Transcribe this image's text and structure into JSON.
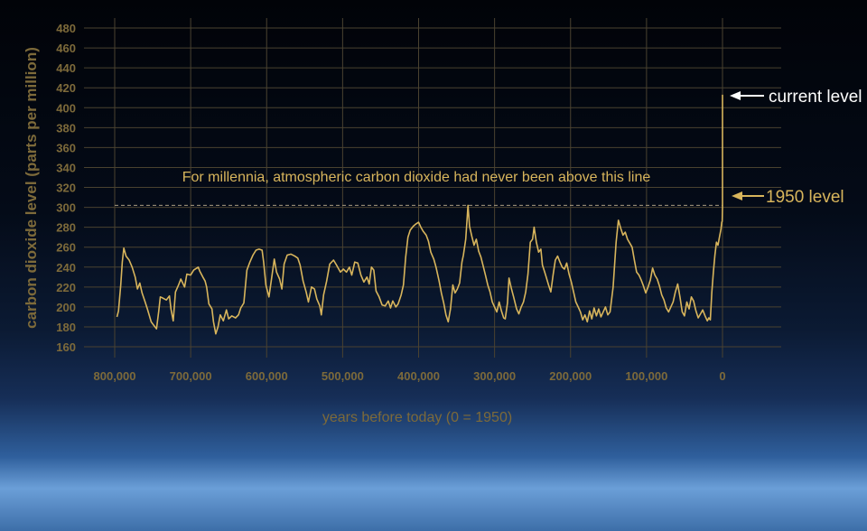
{
  "chart_data": {
    "type": "line",
    "title": "",
    "xlabel": "years before today (0 = 1950)",
    "ylabel": "carbon dioxide level (parts per million)",
    "xlim": [
      800000,
      0
    ],
    "ylim": [
      160,
      480
    ],
    "x_ticks": [
      800000,
      700000,
      600000,
      500000,
      400000,
      300000,
      200000,
      100000,
      0
    ],
    "x_tick_labels": [
      "800,000",
      "700,000",
      "600,000",
      "500,000",
      "400,000",
      "300,000",
      "200,000",
      "100,000",
      "0"
    ],
    "y_ticks": [
      160,
      180,
      200,
      220,
      240,
      260,
      280,
      300,
      320,
      340,
      360,
      380,
      400,
      420,
      440,
      460,
      480
    ],
    "y_tick_labels": [
      "160",
      "180",
      "200",
      "220",
      "240",
      "260",
      "280",
      "300",
      "320",
      "340",
      "360",
      "380",
      "400",
      "420",
      "440",
      "460",
      "480"
    ],
    "grid": true,
    "series": [
      {
        "color": "#d8b55c",
        "points": [
          [
            797000,
            190
          ],
          [
            795000,
            196
          ],
          [
            792000,
            222
          ],
          [
            790000,
            245
          ],
          [
            788000,
            259
          ],
          [
            785000,
            251
          ],
          [
            781000,
            247
          ],
          [
            777000,
            240
          ],
          [
            773000,
            230
          ],
          [
            770000,
            218
          ],
          [
            767000,
            224
          ],
          [
            764000,
            214
          ],
          [
            760000,
            205
          ],
          [
            757000,
            198
          ],
          [
            752000,
            185
          ],
          [
            748000,
            181
          ],
          [
            745000,
            178
          ],
          [
            742000,
            196
          ],
          [
            740000,
            210
          ],
          [
            737000,
            209
          ],
          [
            732000,
            207
          ],
          [
            728000,
            211
          ],
          [
            726000,
            198
          ],
          [
            723000,
            186
          ],
          [
            720000,
            215
          ],
          [
            716000,
            222
          ],
          [
            713000,
            228
          ],
          [
            708000,
            220
          ],
          [
            705000,
            233
          ],
          [
            700000,
            232
          ],
          [
            696000,
            237
          ],
          [
            690000,
            240
          ],
          [
            688000,
            236
          ],
          [
            684000,
            230
          ],
          [
            681000,
            226
          ],
          [
            679000,
            220
          ],
          [
            676000,
            203
          ],
          [
            672000,
            198
          ],
          [
            670000,
            185
          ],
          [
            667000,
            173
          ],
          [
            664000,
            180
          ],
          [
            661000,
            192
          ],
          [
            657000,
            186
          ],
          [
            653000,
            197
          ],
          [
            650000,
            188
          ],
          [
            646000,
            191
          ],
          [
            641000,
            189
          ],
          [
            637000,
            192
          ],
          [
            634000,
            199
          ],
          [
            630000,
            204
          ],
          [
            626000,
            237
          ],
          [
            622000,
            245
          ],
          [
            618000,
            252
          ],
          [
            614000,
            257
          ],
          [
            610000,
            258
          ],
          [
            606000,
            257
          ],
          [
            604000,
            245
          ],
          [
            601000,
            222
          ],
          [
            597000,
            210
          ],
          [
            594000,
            226
          ],
          [
            590000,
            248
          ],
          [
            587000,
            235
          ],
          [
            583000,
            228
          ],
          [
            580000,
            218
          ],
          [
            577000,
            243
          ],
          [
            573000,
            252
          ],
          [
            568000,
            253
          ],
          [
            563000,
            251
          ],
          [
            559000,
            249
          ],
          [
            556000,
            242
          ],
          [
            552000,
            226
          ],
          [
            548000,
            215
          ],
          [
            545000,
            205
          ],
          [
            541000,
            220
          ],
          [
            537000,
            218
          ],
          [
            534000,
            208
          ],
          [
            530000,
            201
          ],
          [
            528000,
            192
          ],
          [
            525000,
            212
          ],
          [
            521000,
            226
          ],
          [
            517000,
            243
          ],
          [
            512000,
            247
          ],
          [
            508000,
            242
          ],
          [
            503000,
            235
          ],
          [
            499000,
            238
          ],
          [
            495000,
            235
          ],
          [
            491000,
            240
          ],
          [
            488000,
            232
          ],
          [
            484000,
            245
          ],
          [
            480000,
            244
          ],
          [
            476000,
            232
          ],
          [
            472000,
            225
          ],
          [
            468000,
            230
          ],
          [
            465000,
            223
          ],
          [
            462000,
            240
          ],
          [
            459000,
            237
          ],
          [
            456000,
            216
          ],
          [
            452000,
            210
          ],
          [
            448000,
            202
          ],
          [
            444000,
            201
          ],
          [
            440000,
            206
          ],
          [
            437000,
            199
          ],
          [
            434000,
            206
          ],
          [
            430000,
            200
          ],
          [
            427000,
            203
          ],
          [
            423000,
            212
          ],
          [
            420000,
            222
          ],
          [
            417000,
            250
          ],
          [
            414000,
            270
          ],
          [
            411000,
            277
          ],
          [
            407000,
            281
          ],
          [
            404000,
            283
          ],
          [
            400000,
            285
          ],
          [
            397000,
            280
          ],
          [
            394000,
            276
          ],
          [
            390000,
            272
          ],
          [
            387000,
            266
          ],
          [
            384000,
            255
          ],
          [
            380000,
            248
          ],
          [
            377000,
            240
          ],
          [
            373000,
            226
          ],
          [
            370000,
            214
          ],
          [
            367000,
            204
          ],
          [
            364000,
            192
          ],
          [
            361000,
            185
          ],
          [
            358000,
            198
          ],
          [
            355000,
            222
          ],
          [
            352000,
            214
          ],
          [
            349000,
            218
          ],
          [
            346000,
            224
          ],
          [
            343000,
            245
          ],
          [
            341000,
            252
          ],
          [
            338000,
            268
          ],
          [
            335000,
            302
          ],
          [
            333000,
            281
          ],
          [
            330000,
            271
          ],
          [
            327000,
            262
          ],
          [
            324000,
            268
          ],
          [
            321000,
            256
          ],
          [
            318000,
            250
          ],
          [
            315000,
            241
          ],
          [
            312000,
            232
          ],
          [
            309000,
            222
          ],
          [
            306000,
            215
          ],
          [
            303000,
            205
          ],
          [
            300000,
            200
          ],
          [
            297000,
            195
          ],
          [
            294000,
            205
          ],
          [
            291000,
            196
          ],
          [
            288000,
            189
          ],
          [
            286000,
            188
          ],
          [
            283000,
            204
          ],
          [
            281000,
            229
          ],
          [
            278000,
            219
          ],
          [
            275000,
            210
          ],
          [
            271000,
            198
          ],
          [
            268000,
            193
          ],
          [
            265000,
            200
          ],
          [
            262000,
            205
          ],
          [
            259000,
            215
          ],
          [
            256000,
            233
          ],
          [
            253000,
            265
          ],
          [
            250000,
            268
          ],
          [
            248000,
            280
          ],
          [
            245000,
            265
          ],
          [
            242000,
            255
          ],
          [
            239000,
            258
          ],
          [
            237000,
            242
          ],
          [
            234000,
            235
          ],
          [
            232000,
            230
          ],
          [
            229000,
            222
          ],
          [
            226000,
            215
          ],
          [
            223000,
            232
          ],
          [
            220000,
            247
          ],
          [
            217000,
            251
          ],
          [
            214000,
            245
          ],
          [
            211000,
            240
          ],
          [
            208000,
            238
          ],
          [
            205000,
            244
          ],
          [
            202000,
            233
          ],
          [
            199000,
            225
          ],
          [
            196000,
            215
          ],
          [
            193000,
            205
          ],
          [
            190000,
            200
          ],
          [
            187000,
            195
          ],
          [
            184000,
            187
          ],
          [
            181000,
            192
          ],
          [
            178000,
            185
          ],
          [
            175000,
            196
          ],
          [
            172000,
            188
          ],
          [
            169000,
            199
          ],
          [
            166000,
            191
          ],
          [
            163000,
            198
          ],
          [
            160000,
            190
          ],
          [
            157000,
            195
          ],
          [
            154000,
            200
          ],
          [
            151000,
            192
          ],
          [
            148000,
            195
          ],
          [
            144000,
            220
          ],
          [
            140000,
            265
          ],
          [
            137000,
            287
          ],
          [
            134000,
            279
          ],
          [
            131000,
            272
          ],
          [
            128000,
            275
          ],
          [
            125000,
            268
          ],
          [
            122000,
            264
          ],
          [
            119000,
            260
          ],
          [
            116000,
            247
          ],
          [
            113000,
            235
          ],
          [
            110000,
            232
          ],
          [
            107000,
            227
          ],
          [
            104000,
            221
          ],
          [
            101000,
            214
          ],
          [
            98000,
            220
          ],
          [
            95000,
            227
          ],
          [
            92000,
            239
          ],
          [
            89000,
            232
          ],
          [
            86000,
            228
          ],
          [
            83000,
            221
          ],
          [
            80000,
            212
          ],
          [
            77000,
            207
          ],
          [
            74000,
            199
          ],
          [
            71000,
            195
          ],
          [
            68000,
            200
          ],
          [
            65000,
            205
          ],
          [
            62000,
            215
          ],
          [
            59000,
            223
          ],
          [
            56000,
            210
          ],
          [
            53000,
            195
          ],
          [
            50000,
            191
          ],
          [
            47000,
            205
          ],
          [
            44000,
            198
          ],
          [
            41000,
            210
          ],
          [
            38000,
            206
          ],
          [
            35000,
            196
          ],
          [
            32000,
            189
          ],
          [
            29000,
            193
          ],
          [
            26000,
            197
          ],
          [
            23000,
            191
          ],
          [
            20000,
            186
          ],
          [
            18000,
            189
          ],
          [
            16000,
            187
          ],
          [
            14000,
            215
          ],
          [
            12000,
            235
          ],
          [
            10000,
            252
          ],
          [
            8000,
            265
          ],
          [
            6000,
            262
          ],
          [
            4000,
            270
          ],
          [
            2000,
            278
          ],
          [
            1000,
            285
          ],
          [
            400,
            286
          ],
          [
            0,
            300
          ],
          [
            0,
            413
          ]
        ]
      }
    ],
    "annotations": [
      {
        "text": "For millennia, atmospheric carbon dioxide had never been above this line",
        "y": 302
      },
      {
        "text": "current level",
        "y": 413,
        "color": "#ffffff"
      },
      {
        "text": "1950 level",
        "y": 305,
        "color": "#d8b55c"
      }
    ]
  }
}
